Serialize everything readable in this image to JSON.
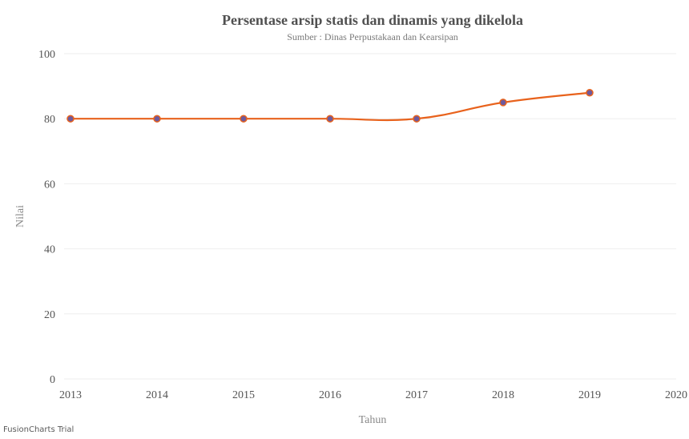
{
  "chart_data": {
    "type": "line",
    "title": "Persentase arsip statis dan dinamis yang dikelola",
    "subtitle": "Sumber : Dinas Perpustakaan dan Kearsipan",
    "xlabel": "Tahun",
    "ylabel": "Nilai",
    "categories": [
      "2013",
      "2014",
      "2015",
      "2016",
      "2017",
      "2018",
      "2019",
      "2020"
    ],
    "series": [
      {
        "values": [
          80,
          80,
          80,
          80,
          80,
          85,
          88,
          null
        ]
      }
    ],
    "y_ticks": [
      "0",
      "20",
      "40",
      "60",
      "80",
      "100"
    ],
    "ylim": [
      0,
      100
    ],
    "grid": true,
    "line_color": "#e8621c",
    "marker_color": "#6e5a9e"
  },
  "watermark": "FusionCharts Trial"
}
